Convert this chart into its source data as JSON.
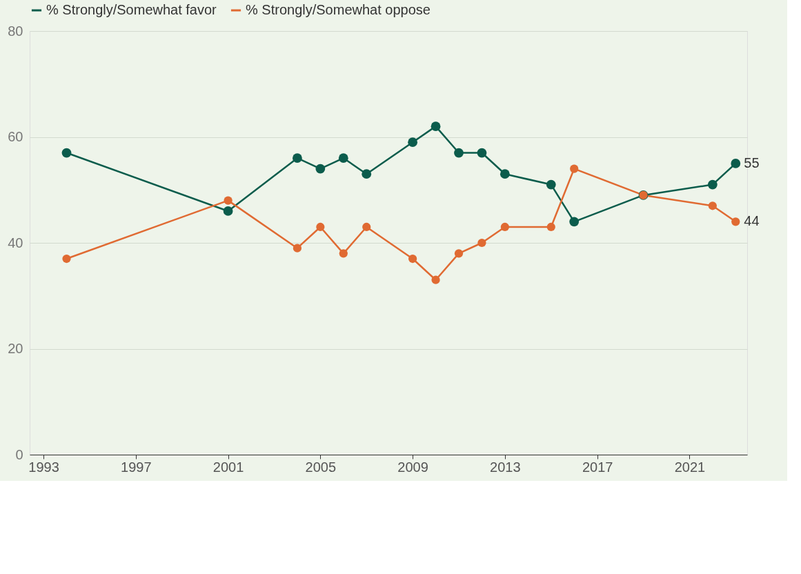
{
  "chart_data": {
    "type": "line",
    "x": [
      1994,
      2001,
      2004,
      2005,
      2006,
      2007,
      2009,
      2010,
      2011,
      2012,
      2013,
      2015,
      2016,
      2019,
      2022,
      2023
    ],
    "series": [
      {
        "name": "% Strongly/Somewhat favor",
        "color": "#0b5c4c",
        "values": [
          57,
          46,
          56,
          54,
          56,
          53,
          59,
          62,
          57,
          57,
          53,
          51,
          44,
          49,
          51,
          55
        ]
      },
      {
        "name": "% Strongly/Somewhat oppose",
        "color": "#e06a32",
        "values": [
          37,
          48,
          39,
          43,
          38,
          43,
          37,
          33,
          38,
          40,
          43,
          43,
          54,
          49,
          47,
          44
        ]
      }
    ],
    "xlim": [
      1992.4,
      2023.5
    ],
    "xticks": [
      1993,
      1997,
      2001,
      2005,
      2009,
      2013,
      2017,
      2021
    ],
    "ylim": [
      0,
      80
    ],
    "yticks": [
      0,
      20,
      40,
      60,
      80
    ],
    "grid": "y",
    "legend": "top left",
    "marker": "circle",
    "line_style": "solid",
    "annotations": [
      {
        "text": "55",
        "x": 2023,
        "y": 55
      },
      {
        "text": "44",
        "x": 2023,
        "y": 44
      }
    ]
  }
}
